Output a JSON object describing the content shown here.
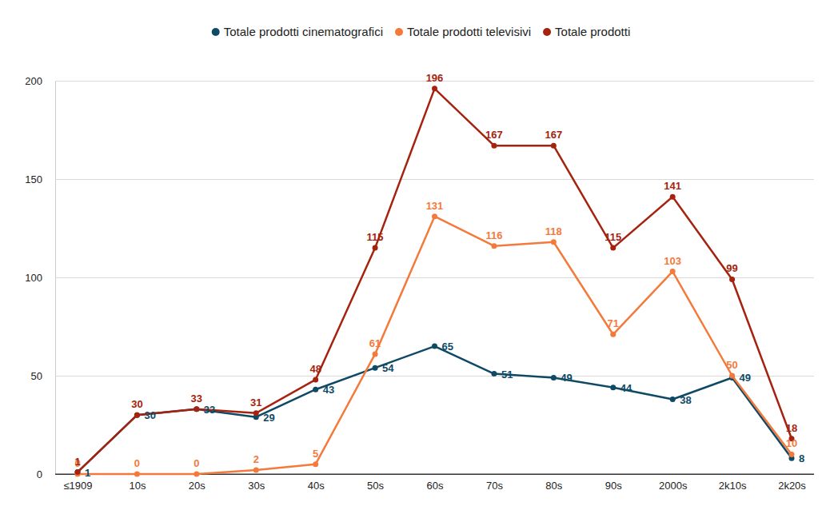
{
  "chart_data": {
    "type": "line",
    "categories": [
      "≤1909",
      "10s",
      "20s",
      "30s",
      "40s",
      "50s",
      "60s",
      "70s",
      "80s",
      "90s",
      "2000s",
      "2k10s",
      "2k20s"
    ],
    "series": [
      {
        "name": "Totale prodotti cinematografici",
        "color": "#0e4a66",
        "marker": "circle",
        "values": [
          1,
          30,
          33,
          29,
          43,
          54,
          65,
          51,
          49,
          44,
          38,
          49,
          8
        ]
      },
      {
        "name": "Totale prodotti televisivi",
        "color": "#f47a3c",
        "marker": "circle",
        "values": [
          0,
          0,
          0,
          2,
          5,
          61,
          131,
          116,
          118,
          71,
          103,
          50,
          10
        ]
      },
      {
        "name": "Totale prodotti",
        "color": "#a5230e",
        "marker": "circle",
        "values": [
          1,
          30,
          33,
          31,
          48,
          115,
          196,
          167,
          167,
          115,
          141,
          99,
          18
        ]
      }
    ],
    "ylim": [
      0,
      200
    ],
    "yticks": [
      0,
      50,
      100,
      150,
      200
    ],
    "grid": true,
    "legend": "top",
    "data_labels": true
  }
}
